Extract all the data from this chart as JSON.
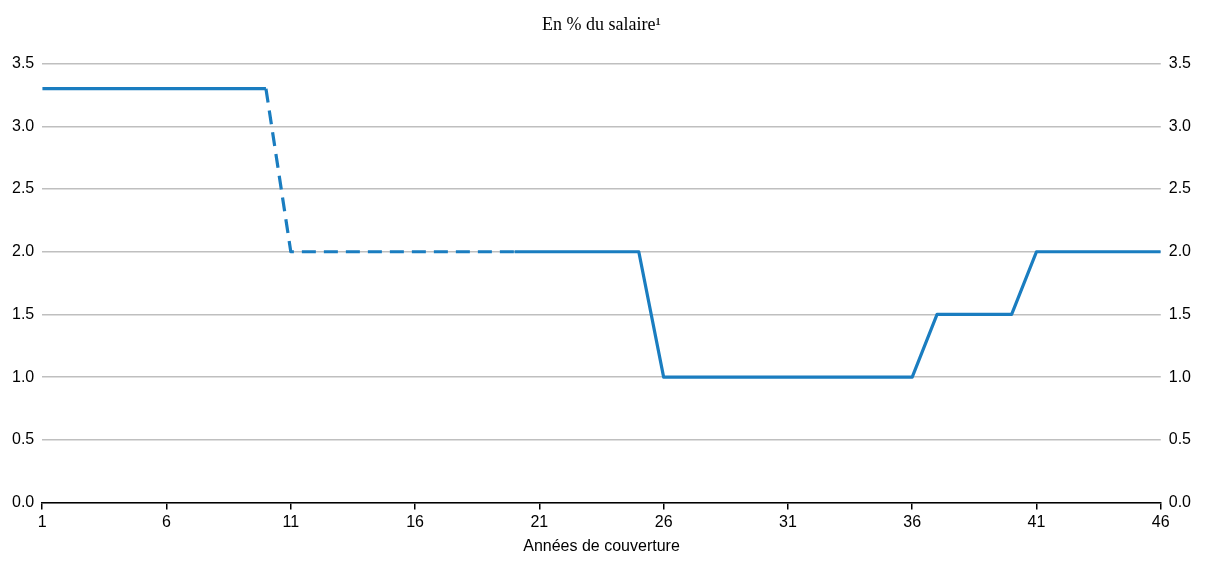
{
  "chart_data": {
    "type": "line",
    "title": "En % du salaire¹",
    "xlabel": "Années de couverture",
    "xlim": [
      1,
      46
    ],
    "xticks": [
      1,
      6,
      11,
      16,
      21,
      26,
      31,
      36,
      41,
      46
    ],
    "ylim": [
      0,
      3.5
    ],
    "yticks": [
      {
        "value": 0,
        "label": "0.0"
      },
      {
        "value": 0.5,
        "label": "0.5"
      },
      {
        "value": 1,
        "label": "1.0"
      },
      {
        "value": 1.5,
        "label": "1.5"
      },
      {
        "value": 2,
        "label": "2.0"
      },
      {
        "value": 2.5,
        "label": "2.5"
      },
      {
        "value": 3,
        "label": "3.0"
      },
      {
        "value": 3.5,
        "label": "3.5"
      }
    ],
    "y2lim": [
      0,
      3.5
    ],
    "y2ticks": [
      {
        "value": 0,
        "label": "0.0"
      },
      {
        "value": 0.5,
        "label": "0.5"
      },
      {
        "value": 1,
        "label": "1.0"
      },
      {
        "value": 1.5,
        "label": "1.5"
      },
      {
        "value": 2,
        "label": "2.0"
      },
      {
        "value": 2.5,
        "label": "2.5"
      },
      {
        "value": 3,
        "label": "3.0"
      },
      {
        "value": 3.5,
        "label": "3.5"
      }
    ],
    "series": [
      {
        "color": "#1a7dc0",
        "line_style": "solid",
        "x": [
          1,
          10
        ],
        "values": [
          3.3,
          3.3
        ]
      },
      {
        "color": "#1a7dc0",
        "line_style": "dashed",
        "x": [
          10,
          11,
          20
        ],
        "values": [
          3.3,
          2,
          2
        ]
      },
      {
        "color": "#1a7dc0",
        "line_style": "solid",
        "x": [
          20,
          25,
          26,
          36,
          37,
          40,
          41,
          46
        ],
        "values": [
          2,
          2,
          1,
          1,
          1.5,
          1.5,
          2,
          2
        ]
      }
    ],
    "grid": "y",
    "legend": false,
    "marker": "none"
  }
}
